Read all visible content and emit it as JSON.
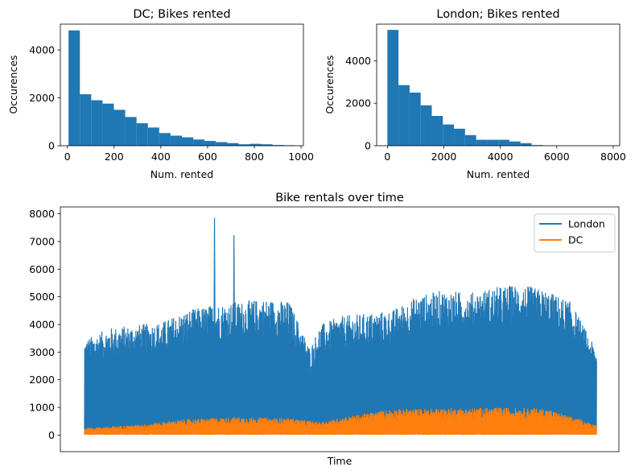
{
  "chart_data": [
    {
      "type": "bar",
      "title": "DC; Bikes rented",
      "xlabel": "Num. rented",
      "ylabel": "Occurences",
      "xlim": [
        -30,
        1010
      ],
      "ylim": [
        0,
        5080
      ],
      "xticks": [
        0,
        200,
        400,
        600,
        800,
        1000
      ],
      "yticks": [
        0,
        2000,
        4000
      ],
      "bin_edges": [
        5,
        53.5,
        102,
        150.5,
        199,
        247.5,
        296,
        344.5,
        393,
        441.5,
        490,
        538.5,
        587,
        635.5,
        684,
        732.5,
        781,
        829.5,
        878,
        926.5,
        975
      ],
      "values": [
        4820,
        2150,
        1900,
        1760,
        1500,
        1200,
        940,
        760,
        530,
        420,
        350,
        260,
        200,
        150,
        110,
        60,
        80,
        60,
        30,
        20
      ],
      "color": "#1f77b4"
    },
    {
      "type": "bar",
      "title": "London; Bikes rented",
      "xlabel": "Num. rented",
      "ylabel": "Occurences",
      "xlim": [
        -380,
        8230
      ],
      "ylim": [
        0,
        5720
      ],
      "xticks": [
        0,
        2000,
        4000,
        6000,
        8000
      ],
      "yticks": [
        0,
        2000,
        4000
      ],
      "bin_edges": [
        0,
        393,
        786,
        1179,
        1572,
        1965,
        2358,
        2751,
        3144,
        3537,
        3930,
        4323,
        4716,
        5109,
        5502,
        5895,
        6288,
        6681,
        7074,
        7467,
        7860
      ],
      "values": [
        5450,
        2850,
        2500,
        1900,
        1400,
        1000,
        800,
        500,
        280,
        280,
        280,
        200,
        120,
        30,
        10,
        5,
        5,
        3,
        3,
        3
      ],
      "color": "#1f77b4"
    },
    {
      "type": "line",
      "title": "Bike rentals over time",
      "xlabel": "Time",
      "ylabel": "",
      "ylim": [
        -600,
        8250
      ],
      "yticks": [
        0,
        1000,
        2000,
        3000,
        4000,
        5000,
        6000,
        7000,
        8000
      ],
      "x_range": [
        0,
        1
      ],
      "series": [
        {
          "name": "London",
          "color": "#1f77b4",
          "profile_x": [
            0.0,
            0.05,
            0.1,
            0.15,
            0.2,
            0.25,
            0.3,
            0.35,
            0.4,
            0.44,
            0.46,
            0.5,
            0.55,
            0.6,
            0.65,
            0.7,
            0.75,
            0.8,
            0.85,
            0.9,
            0.95,
            1.0
          ],
          "peak_profile": [
            3300,
            3700,
            3800,
            3900,
            4300,
            4500,
            4600,
            4700,
            4600,
            3000,
            3800,
            4100,
            4200,
            4300,
            4800,
            5000,
            4900,
            5100,
            5200,
            5000,
            4600,
            2900
          ],
          "spikes": [
            {
              "x": 0.254,
              "y": 7850
            },
            {
              "x": 0.292,
              "y": 7230
            }
          ]
        },
        {
          "name": "DC",
          "color": "#ff7f0e",
          "profile_x": [
            0.0,
            0.1,
            0.2,
            0.3,
            0.4,
            0.46,
            0.5,
            0.6,
            0.7,
            0.8,
            0.9,
            1.0
          ],
          "peak_profile": [
            250,
            350,
            550,
            620,
            580,
            450,
            600,
            900,
            920,
            950,
            920,
            350
          ]
        }
      ]
    }
  ]
}
